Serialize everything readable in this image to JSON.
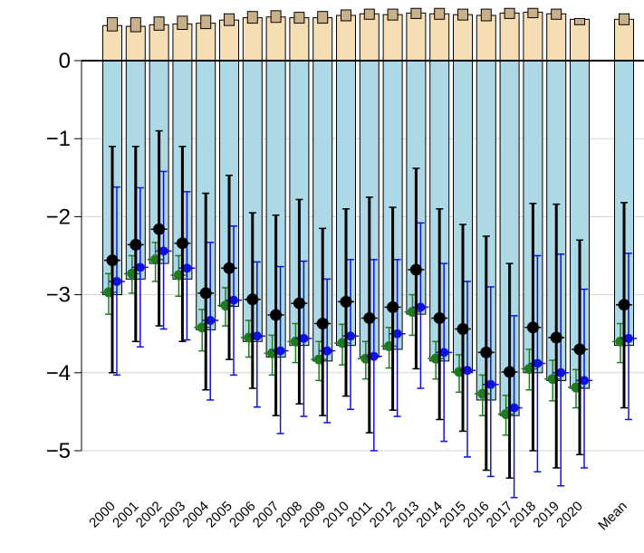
{
  "chart_data": {
    "type": "bar",
    "title": "",
    "xlabel": "",
    "ylabel": "",
    "ylim": [
      -5.6,
      0.7
    ],
    "y_ticks": [
      0,
      -1,
      -2,
      -3,
      -4,
      -5
    ],
    "y_tick_labels": [
      "0",
      "−1",
      "−2",
      "−3",
      "−4",
      "−5"
    ],
    "grid": "horizontal",
    "categories": [
      "2000",
      "2001",
      "2002",
      "2003",
      "2004",
      "2005",
      "2006",
      "2007",
      "2008",
      "2009",
      "2010",
      "2011",
      "2012",
      "2013",
      "2014",
      "2015",
      "2016",
      "2017",
      "2018",
      "2019",
      "2020",
      "Mean"
    ],
    "colors": {
      "positive_bar": "#F5DEB3",
      "positive_cap": "#C8B08A",
      "negative_bar": "#ADD8E6",
      "black_series": "#000000",
      "green_series": "#1E7B1E",
      "blue_series": "#1010E0",
      "grid": "#D3D3D3"
    },
    "series": [
      {
        "kind": "positive_bar",
        "values": [
          0.45,
          0.44,
          0.46,
          0.47,
          0.48,
          0.52,
          0.55,
          0.56,
          0.55,
          0.55,
          0.58,
          0.6,
          0.59,
          0.61,
          0.6,
          0.59,
          0.58,
          0.61,
          0.62,
          0.6,
          0.53,
          0.53
        ],
        "cap_values": [
          0.55,
          0.55,
          0.56,
          0.57,
          0.58,
          0.6,
          0.63,
          0.64,
          0.62,
          0.63,
          0.65,
          0.66,
          0.66,
          0.67,
          0.67,
          0.66,
          0.66,
          0.67,
          0.67,
          0.66,
          0.54,
          0.6
        ]
      },
      {
        "kind": "negative_bar",
        "values": [
          -3.0,
          -2.8,
          -2.6,
          -2.8,
          -3.45,
          -3.15,
          -3.6,
          -3.8,
          -3.65,
          -3.85,
          -3.65,
          -3.8,
          -3.7,
          -3.25,
          -3.85,
          -4.0,
          -4.35,
          -4.55,
          -4.0,
          -4.1,
          -4.2,
          -3.65
        ]
      },
      {
        "kind": "black_points",
        "values": [
          -2.56,
          -2.36,
          -2.16,
          -2.34,
          -2.98,
          -2.66,
          -3.06,
          -3.26,
          -3.11,
          -3.37,
          -3.09,
          -3.3,
          -3.16,
          -2.68,
          -3.3,
          -3.44,
          -3.74,
          -3.99,
          -3.42,
          -3.55,
          -3.7,
          -3.13
        ],
        "low": [
          -4.0,
          -3.6,
          -3.4,
          -3.6,
          -4.22,
          -3.83,
          -4.2,
          -4.55,
          -4.4,
          -4.55,
          -4.3,
          -4.77,
          -4.48,
          -3.95,
          -4.6,
          -4.75,
          -5.25,
          -5.35,
          -5.0,
          -5.22,
          -5.05,
          -4.45
        ],
        "high": [
          -1.1,
          -1.1,
          -0.9,
          -1.1,
          -1.7,
          -1.47,
          -1.95,
          -1.98,
          -1.78,
          -2.15,
          -1.9,
          -1.75,
          -1.88,
          -1.38,
          -1.9,
          -2.1,
          -2.25,
          -2.6,
          -1.83,
          -1.84,
          -2.3,
          -1.82
        ]
      },
      {
        "kind": "green_points",
        "values": [
          -2.97,
          -2.73,
          -2.55,
          -2.75,
          -3.42,
          -3.14,
          -3.55,
          -3.75,
          -3.6,
          -3.83,
          -3.62,
          -3.82,
          -3.66,
          -3.22,
          -3.82,
          -3.99,
          -4.27,
          -4.53,
          -3.95,
          -4.08,
          -4.19,
          -3.6
        ],
        "low": [
          -3.25,
          -2.98,
          -2.83,
          -3.02,
          -3.72,
          -3.4,
          -3.8,
          -4.03,
          -3.87,
          -4.1,
          -3.9,
          -4.08,
          -3.94,
          -3.52,
          -4.08,
          -4.25,
          -4.55,
          -4.8,
          -4.22,
          -4.36,
          -4.45,
          -3.87
        ],
        "high": [
          -2.73,
          -2.5,
          -2.33,
          -2.5,
          -3.19,
          -2.91,
          -3.33,
          -3.52,
          -3.37,
          -3.6,
          -3.38,
          -3.6,
          -3.42,
          -3.0,
          -3.6,
          -3.77,
          -4.03,
          -4.29,
          -3.7,
          -3.84,
          -3.96,
          -3.37
        ]
      },
      {
        "kind": "blue_points",
        "values": [
          -2.83,
          -2.65,
          -2.44,
          -2.66,
          -3.33,
          -3.07,
          -3.53,
          -3.72,
          -3.56,
          -3.72,
          -3.53,
          -3.79,
          -3.5,
          -3.16,
          -3.74,
          -3.97,
          -4.15,
          -4.45,
          -3.88,
          -4.0,
          -4.1,
          -3.56
        ],
        "low": [
          -4.03,
          -3.67,
          -3.44,
          -3.58,
          -4.35,
          -4.03,
          -4.44,
          -4.78,
          -4.56,
          -4.64,
          -4.47,
          -5.0,
          -4.56,
          -4.2,
          -4.88,
          -5.08,
          -5.33,
          -5.6,
          -5.27,
          -5.45,
          -5.22,
          -4.6
        ],
        "high": [
          -1.62,
          -1.63,
          -1.42,
          -1.68,
          -2.33,
          -2.12,
          -2.58,
          -2.64,
          -2.57,
          -2.8,
          -2.55,
          -2.55,
          -2.55,
          -2.08,
          -2.6,
          -2.83,
          -2.9,
          -3.27,
          -2.5,
          -2.48,
          -2.93,
          -2.47
        ]
      }
    ]
  }
}
